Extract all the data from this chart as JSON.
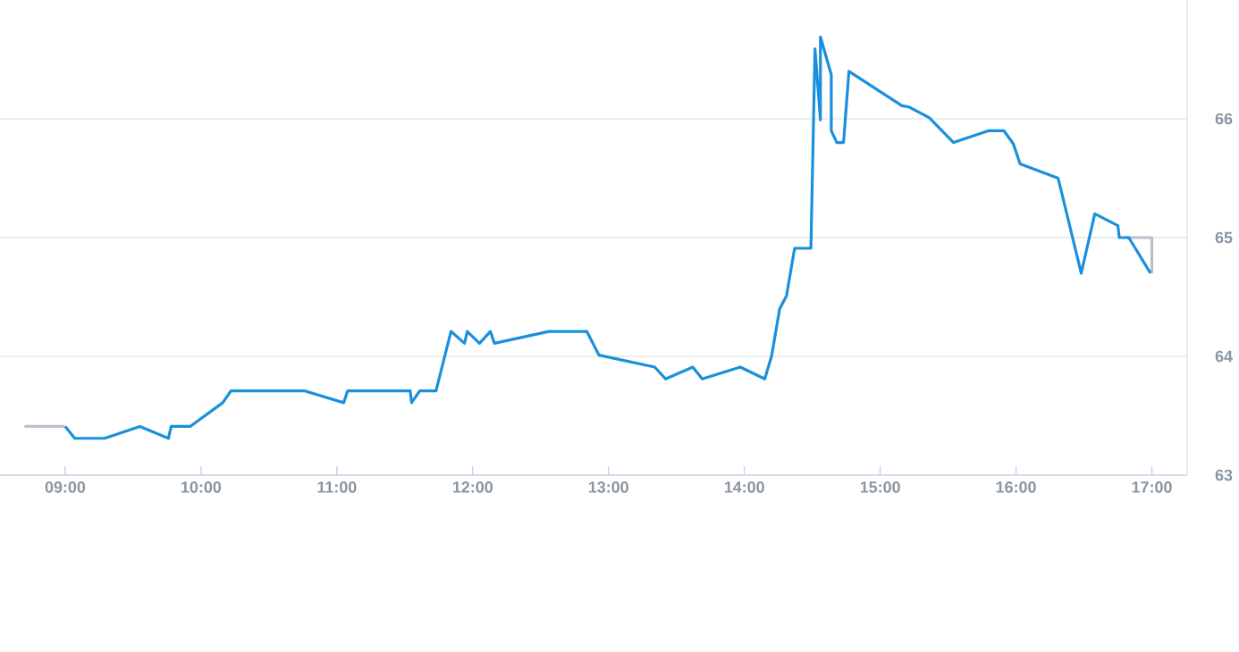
{
  "chart_data": {
    "type": "line",
    "xlim": [
      8.52,
      17.26
    ],
    "ylim": [
      63,
      67
    ],
    "xticks": [
      {
        "value": 9,
        "label": "09:00"
      },
      {
        "value": 10,
        "label": "10:00"
      },
      {
        "value": 11,
        "label": "11:00"
      },
      {
        "value": 12,
        "label": "12:00"
      },
      {
        "value": 13,
        "label": "13:00"
      },
      {
        "value": 14,
        "label": "14:00"
      },
      {
        "value": 15,
        "label": "15:00"
      },
      {
        "value": 16,
        "label": "16:00"
      },
      {
        "value": 17,
        "label": "17:00"
      }
    ],
    "yticks": [
      63,
      64,
      65,
      66
    ],
    "grid": "y",
    "marker": "none",
    "line_style": "solid",
    "series": [
      {
        "color": "#b8c2cc",
        "x": [
          8.7,
          9.0
        ],
        "values": [
          63.41,
          63.41
        ]
      },
      {
        "color": "#b8c2cc",
        "x": [
          16.81,
          17.0,
          17.0
        ],
        "values": [
          65.0,
          65.0,
          64.7
        ]
      },
      {
        "color": "#1a8fdd",
        "x": [
          9.0,
          9.07,
          9.29,
          9.55,
          9.76,
          9.78,
          9.92,
          10.16,
          10.22,
          10.76,
          11.05,
          11.08,
          11.54,
          11.55,
          11.61,
          11.73,
          11.84,
          11.94,
          11.96,
          12.05,
          12.13,
          12.16,
          12.56,
          12.84,
          12.93,
          13.34,
          13.42,
          13.62,
          13.69,
          13.97,
          14.15,
          14.2,
          14.26,
          14.31,
          14.37,
          14.49,
          14.52,
          14.56,
          14.56,
          14.64,
          14.64,
          14.68,
          14.73,
          14.77,
          15.16,
          15.21,
          15.36,
          15.54,
          15.8,
          15.91,
          15.98,
          16.03,
          16.31,
          16.48,
          16.58,
          16.75,
          16.76,
          16.83,
          16.99
        ],
        "values": [
          63.41,
          63.31,
          63.31,
          63.41,
          63.31,
          63.41,
          63.41,
          63.61,
          63.71,
          63.71,
          63.61,
          63.71,
          63.71,
          63.61,
          63.71,
          63.71,
          64.21,
          64.11,
          64.21,
          64.11,
          64.21,
          64.11,
          64.21,
          64.21,
          64.01,
          63.91,
          63.81,
          63.91,
          63.81,
          63.91,
          63.81,
          64.0,
          64.4,
          64.51,
          64.91,
          64.91,
          66.59,
          65.99,
          66.69,
          66.37,
          65.9,
          65.8,
          65.8,
          66.4,
          66.11,
          66.1,
          66.01,
          65.8,
          65.9,
          65.9,
          65.79,
          65.62,
          65.5,
          64.7,
          65.2,
          65.1,
          65.0,
          65.0,
          64.7
        ]
      }
    ]
  }
}
